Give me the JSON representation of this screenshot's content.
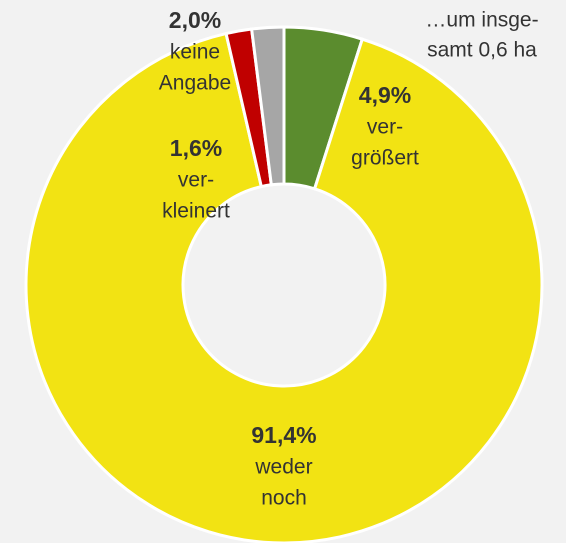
{
  "chart_data": {
    "type": "donut",
    "categories": [
      [
        "ver-",
        "größert"
      ],
      [
        "weder",
        "noch"
      ],
      [
        "ver-",
        "kleinert"
      ],
      [
        "keine",
        "Angabe"
      ]
    ],
    "values": [
      4.9,
      91.4,
      1.6,
      2.0
    ],
    "value_labels": [
      "4,9%",
      "91,4%",
      "1,6%",
      "2,0%"
    ],
    "colors": [
      "#5b8c2e",
      "#f2e313",
      "#c00000",
      "#a6a6a6"
    ],
    "annotation": [
      "…um insge-",
      "samt 0,6 ha"
    ]
  }
}
